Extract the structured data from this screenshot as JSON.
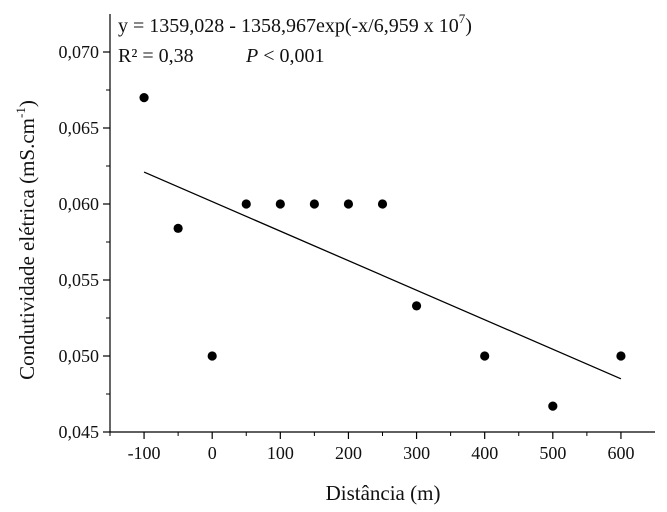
{
  "chart_data": {
    "type": "scatter",
    "title": "",
    "xlabel": "Distância (m)",
    "ylabel_main": "Condutividade elétrica (mS.cm",
    "ylabel_exp": "-1",
    "ylabel_close": ")",
    "xlim": [
      -150,
      650
    ],
    "ylim": [
      0.045,
      0.0725
    ],
    "x_ticks": [
      -100,
      0,
      100,
      200,
      300,
      400,
      500,
      600
    ],
    "x_tick_labels": [
      "-100",
      "0",
      "100",
      "200",
      "300",
      "400",
      "500",
      "600"
    ],
    "y_ticks": [
      0.045,
      0.05,
      0.055,
      0.06,
      0.065,
      0.07
    ],
    "y_tick_labels": [
      "0,045",
      "0,050",
      "0,055",
      "0,060",
      "0,065",
      "0,070"
    ],
    "grid": false,
    "legend": "none",
    "points": [
      {
        "x": -100,
        "y": 0.067
      },
      {
        "x": -50,
        "y": 0.0584
      },
      {
        "x": 0,
        "y": 0.05
      },
      {
        "x": 50,
        "y": 0.06
      },
      {
        "x": 100,
        "y": 0.06
      },
      {
        "x": 150,
        "y": 0.06
      },
      {
        "x": 200,
        "y": 0.06
      },
      {
        "x": 250,
        "y": 0.06
      },
      {
        "x": 300,
        "y": 0.0533
      },
      {
        "x": 400,
        "y": 0.05
      },
      {
        "x": 500,
        "y": 0.0467
      },
      {
        "x": 600,
        "y": 0.05
      }
    ],
    "fit_line": {
      "x": [
        -100,
        600
      ],
      "y": [
        0.0621,
        0.0485
      ]
    },
    "annotation": {
      "equation_main": "y = 1359,028 - 1358,967exp(-x/6,959 x 10",
      "equation_exp": "7",
      "equation_close": ")",
      "r2": "R² = 0,38",
      "p_symbol": "P",
      "p_value": " < 0,001"
    },
    "colors": {
      "points": "#000000",
      "line": "#000000",
      "axis": "#000000"
    }
  }
}
